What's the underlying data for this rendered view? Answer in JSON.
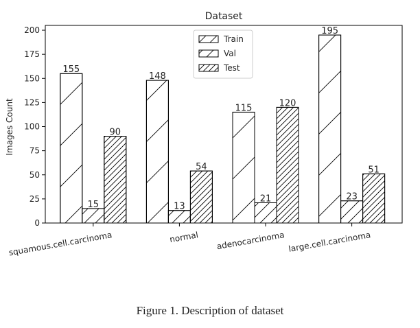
{
  "figure": {
    "caption": "Figure 1. Description of dataset"
  },
  "chart_data": {
    "type": "bar",
    "title": "Dataset",
    "xlabel": "",
    "ylabel": "Images Count",
    "ylim": [
      0,
      205
    ],
    "yticks": [
      0,
      25,
      50,
      75,
      100,
      125,
      150,
      175,
      200
    ],
    "categories": [
      "squamous.cell.carcinoma",
      "normal",
      "adenocarcinoma",
      "large.cell.carcinoma"
    ],
    "series": [
      {
        "name": "Train",
        "values": [
          155,
          148,
          115,
          195
        ],
        "hatch": "sparse"
      },
      {
        "name": "Val",
        "values": [
          15,
          13,
          21,
          23
        ],
        "hatch": "medium"
      },
      {
        "name": "Test",
        "values": [
          90,
          54,
          120,
          51
        ],
        "hatch": "dense"
      }
    ],
    "legend_position": "top-center",
    "grid": false,
    "bar_color": "#ffffff",
    "edge_color": "#000000"
  }
}
